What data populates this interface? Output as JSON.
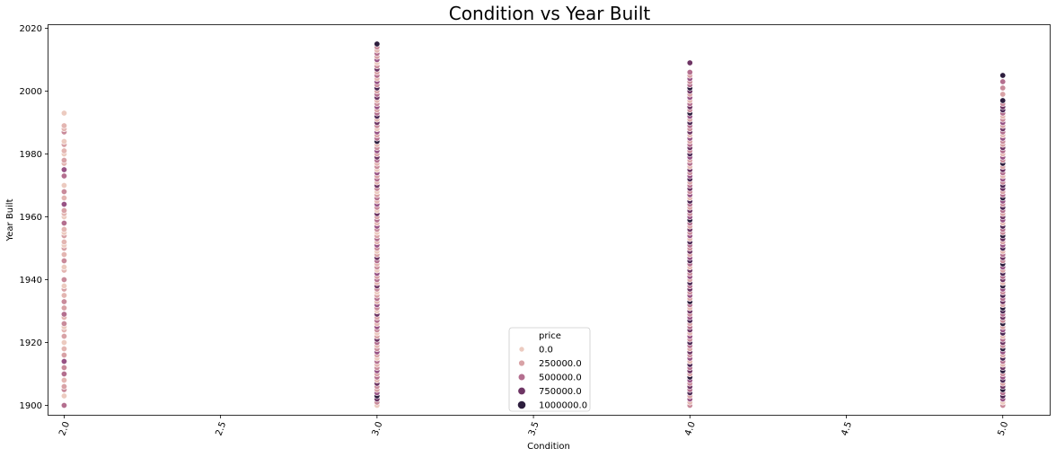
{
  "chart_data": {
    "type": "scatter",
    "title": "Condition vs Year Built",
    "xlabel": "Condition",
    "ylabel": "Year Built",
    "xlim": [
      1.95,
      5.15
    ],
    "ylim": [
      1897,
      2021
    ],
    "x_ticks": [
      "2.0",
      "2.5",
      "3.0",
      "3.5",
      "4.0",
      "4.5",
      "5.0"
    ],
    "x_tick_values": [
      2.0,
      2.5,
      3.0,
      3.5,
      4.0,
      4.5,
      5.0
    ],
    "y_ticks": [
      "1900",
      "1920",
      "1940",
      "1960",
      "1980",
      "2000",
      "2020"
    ],
    "y_tick_values": [
      1900,
      1920,
      1940,
      1960,
      1980,
      2000,
      2020
    ],
    "grid": false,
    "hue_variable": "price",
    "legend": {
      "title": "price",
      "placement": "lower-center",
      "entries": [
        {
          "label": "0.0",
          "color": "#eccbc0"
        },
        {
          "label": "250000.0",
          "color": "#d8a2a6"
        },
        {
          "label": "500000.0",
          "color": "#b46f8f"
        },
        {
          "label": "750000.0",
          "color": "#6e3564"
        },
        {
          "label": "1000000.0",
          "color": "#2d1e3e"
        }
      ]
    },
    "palette": [
      "#eccbc0",
      "#e3b6b2",
      "#d8a2a6",
      "#c98b9b",
      "#b46f8f",
      "#985385",
      "#6e3564",
      "#4d2855",
      "#2d1e3e"
    ],
    "series": [
      {
        "condition": 2.0,
        "years": [
          1900,
          1903,
          1905,
          1906,
          1908,
          1910,
          1912,
          1914,
          1916,
          1918,
          1920,
          1922,
          1924,
          1925,
          1926,
          1928,
          1929,
          1931,
          1933,
          1935,
          1937,
          1938,
          1940,
          1943,
          1944,
          1946,
          1948,
          1950,
          1951,
          1952,
          1954,
          1955,
          1956,
          1958,
          1960,
          1961,
          1962,
          1964,
          1966,
          1968,
          1970,
          1973,
          1975,
          1977,
          1978,
          1980,
          1981,
          1983,
          1984,
          1987,
          1988,
          1989,
          1993
        ],
        "levels": [
          4,
          0,
          3,
          2,
          1,
          4,
          3,
          5,
          2,
          1,
          0,
          2,
          1,
          0,
          3,
          1,
          4,
          2,
          3,
          1,
          2,
          0,
          3,
          1,
          0,
          3,
          1,
          2,
          0,
          1,
          2,
          0,
          1,
          4,
          0,
          1,
          2,
          5,
          1,
          3,
          0,
          4,
          5,
          1,
          2,
          0,
          1,
          2,
          0,
          3,
          1,
          1,
          0
        ]
      },
      {
        "condition": 3.0,
        "years": [
          1900,
          1901,
          1902,
          1903,
          1904,
          1905,
          1906,
          1907,
          1908,
          1909,
          1910,
          1911,
          1912,
          1913,
          1914,
          1915,
          1916,
          1917,
          1918,
          1919,
          1920,
          1921,
          1922,
          1923,
          1924,
          1925,
          1926,
          1927,
          1928,
          1929,
          1930,
          1931,
          1932,
          1933,
          1934,
          1935,
          1936,
          1937,
          1938,
          1939,
          1940,
          1941,
          1942,
          1943,
          1944,
          1945,
          1946,
          1947,
          1948,
          1949,
          1950,
          1951,
          1952,
          1953,
          1954,
          1955,
          1956,
          1957,
          1958,
          1959,
          1960,
          1961,
          1962,
          1963,
          1964,
          1965,
          1966,
          1967,
          1968,
          1969,
          1970,
          1971,
          1972,
          1973,
          1974,
          1975,
          1976,
          1977,
          1978,
          1979,
          1980,
          1981,
          1982,
          1983,
          1984,
          1985,
          1986,
          1987,
          1988,
          1989,
          1990,
          1991,
          1992,
          1993,
          1994,
          1995,
          1996,
          1997,
          1998,
          1999,
          2000,
          2001,
          2002,
          2003,
          2004,
          2005,
          2006,
          2007,
          2008,
          2009,
          2010,
          2011,
          2012,
          2013,
          2014,
          2015
        ],
        "levels": [
          0,
          3,
          6,
          8,
          5,
          2,
          3,
          6,
          1,
          4,
          2,
          5,
          3,
          1,
          4,
          0,
          2,
          5,
          3,
          1,
          4,
          6,
          2,
          0,
          3,
          5,
          1,
          4,
          2,
          6,
          0,
          3,
          5,
          1,
          4,
          2,
          0,
          3,
          6,
          1,
          4,
          2,
          5,
          0,
          3,
          1,
          4,
          6,
          2,
          0,
          3,
          5,
          1,
          4,
          2,
          0,
          3,
          5,
          1,
          4,
          2,
          6,
          0,
          3,
          5,
          1,
          4,
          2,
          0,
          3,
          6,
          1,
          4,
          2,
          5,
          0,
          3,
          1,
          4,
          6,
          2,
          5,
          3,
          1,
          8,
          4,
          2,
          5,
          0,
          3,
          6,
          1,
          7,
          4,
          2,
          5,
          3,
          1,
          6,
          4,
          2,
          7,
          3,
          5,
          1,
          4,
          2,
          6,
          3,
          0,
          5,
          2,
          4,
          1,
          3,
          8
        ]
      },
      {
        "condition": 4.0,
        "years": [
          1900,
          1901,
          1902,
          1903,
          1904,
          1905,
          1906,
          1907,
          1908,
          1909,
          1910,
          1911,
          1912,
          1913,
          1914,
          1915,
          1916,
          1917,
          1918,
          1919,
          1920,
          1921,
          1922,
          1923,
          1924,
          1925,
          1926,
          1927,
          1928,
          1929,
          1930,
          1931,
          1932,
          1933,
          1934,
          1935,
          1936,
          1937,
          1938,
          1939,
          1940,
          1941,
          1942,
          1943,
          1944,
          1945,
          1946,
          1947,
          1948,
          1949,
          1950,
          1951,
          1952,
          1953,
          1954,
          1955,
          1956,
          1957,
          1958,
          1959,
          1960,
          1961,
          1962,
          1963,
          1964,
          1965,
          1966,
          1967,
          1968,
          1969,
          1970,
          1971,
          1972,
          1973,
          1974,
          1975,
          1976,
          1977,
          1978,
          1979,
          1980,
          1981,
          1982,
          1983,
          1984,
          1985,
          1986,
          1987,
          1988,
          1989,
          1990,
          1991,
          1992,
          1993,
          1994,
          1995,
          1996,
          1997,
          1998,
          1999,
          2000,
          2001,
          2002,
          2003,
          2004,
          2005,
          2006,
          2009
        ],
        "levels": [
          3,
          1,
          5,
          2,
          7,
          4,
          6,
          3,
          5,
          8,
          2,
          6,
          4,
          7,
          1,
          5,
          3,
          6,
          2,
          4,
          7,
          3,
          5,
          1,
          6,
          4,
          2,
          7,
          5,
          3,
          6,
          1,
          4,
          8,
          2,
          5,
          3,
          6,
          4,
          7,
          2,
          5,
          3,
          6,
          1,
          4,
          7,
          5,
          2,
          6,
          3,
          4,
          7,
          1,
          5,
          3,
          6,
          2,
          4,
          8,
          5,
          3,
          6,
          2,
          4,
          7,
          1,
          5,
          3,
          6,
          4,
          2,
          7,
          5,
          3,
          6,
          1,
          4,
          2,
          5,
          7,
          3,
          6,
          4,
          2,
          5,
          1,
          6,
          3,
          4,
          7,
          2,
          5,
          8,
          3,
          6,
          4,
          1,
          5,
          2,
          6,
          8,
          4,
          3,
          5,
          2,
          4,
          6
        ]
      },
      {
        "condition": 5.0,
        "years": [
          1900,
          1901,
          1902,
          1903,
          1904,
          1905,
          1906,
          1907,
          1908,
          1909,
          1910,
          1911,
          1912,
          1913,
          1914,
          1915,
          1916,
          1917,
          1918,
          1919,
          1920,
          1921,
          1922,
          1923,
          1924,
          1925,
          1926,
          1927,
          1928,
          1929,
          1930,
          1931,
          1932,
          1933,
          1934,
          1935,
          1936,
          1937,
          1938,
          1939,
          1940,
          1941,
          1942,
          1943,
          1944,
          1945,
          1946,
          1947,
          1948,
          1949,
          1950,
          1951,
          1952,
          1953,
          1954,
          1955,
          1956,
          1957,
          1958,
          1959,
          1960,
          1961,
          1962,
          1963,
          1964,
          1965,
          1966,
          1967,
          1968,
          1969,
          1970,
          1971,
          1972,
          1973,
          1974,
          1975,
          1976,
          1977,
          1978,
          1979,
          1980,
          1981,
          1982,
          1983,
          1984,
          1985,
          1986,
          1987,
          1988,
          1989,
          1990,
          1991,
          1992,
          1993,
          1994,
          1995,
          1996,
          1997,
          1999,
          2001,
          2003,
          2005
        ],
        "levels": [
          3,
          0,
          5,
          7,
          4,
          8,
          6,
          2,
          7,
          5,
          3,
          8,
          6,
          1,
          4,
          7,
          2,
          5,
          8,
          3,
          6,
          4,
          1,
          7,
          5,
          2,
          8,
          3,
          6,
          4,
          7,
          8,
          2,
          6,
          4,
          7,
          3,
          5,
          8,
          1,
          6,
          4,
          7,
          2,
          5,
          8,
          3,
          6,
          4,
          1,
          7,
          5,
          2,
          6,
          8,
          3,
          4,
          7,
          1,
          5,
          6,
          2,
          4,
          7,
          3,
          5,
          8,
          4,
          2,
          6,
          7,
          3,
          5,
          1,
          4,
          6,
          2,
          8,
          3,
          5,
          1,
          4,
          6,
          2,
          3,
          5,
          1,
          4,
          6,
          2,
          5,
          3,
          1,
          4,
          7,
          6,
          3,
          8,
          2,
          3,
          4,
          8
        ]
      }
    ]
  }
}
